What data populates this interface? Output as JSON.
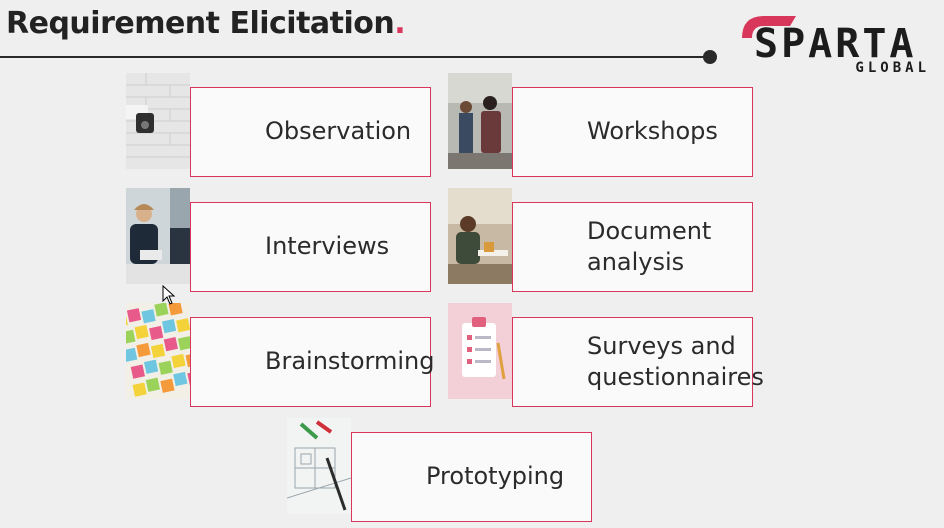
{
  "slide": {
    "title": "Requirement Elicitation",
    "title_dot": ".",
    "accent_color": "#d8365a"
  },
  "logo": {
    "word": "SPARTA",
    "sub": "GLOBAL"
  },
  "cards": [
    {
      "label": "Observation",
      "icon": "security-camera-icon"
    },
    {
      "label": "Workshops",
      "icon": "workshop-photo-icon"
    },
    {
      "label": "Interviews",
      "icon": "interview-photo-icon"
    },
    {
      "label": "Document analysis",
      "icon": "document-analysis-photo-icon"
    },
    {
      "label": "Brainstorming",
      "icon": "sticky-notes-icon"
    },
    {
      "label": "Surveys and questionnaires",
      "icon": "clipboard-checklist-icon"
    },
    {
      "label": "Prototyping",
      "icon": "blueprint-icon"
    }
  ]
}
